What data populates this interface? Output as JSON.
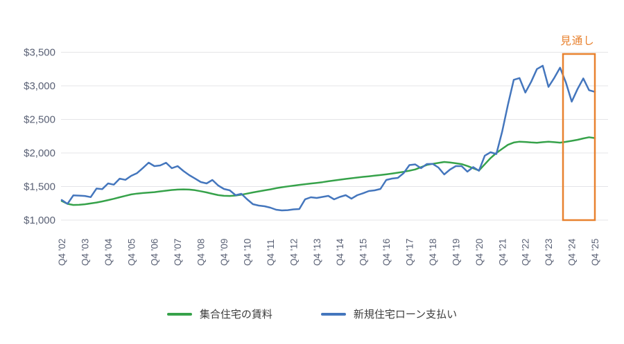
{
  "chart_data": {
    "type": "line",
    "title": "",
    "grid": "horizontal",
    "legend_position": "bottom",
    "axis_color": "#5a6175",
    "grid_color": "#e4e4e7",
    "ylim": [
      1000,
      3500
    ],
    "y_ticks": [
      {
        "value": 1000,
        "label": "$1,000"
      },
      {
        "value": 1500,
        "label": "$1,500"
      },
      {
        "value": 2000,
        "label": "$2,000"
      },
      {
        "value": 2500,
        "label": "$2,500"
      },
      {
        "value": 3000,
        "label": "$3,000"
      },
      {
        "value": 3500,
        "label": "$3,500"
      }
    ],
    "points_per_x_label": 4,
    "x_tick_labels": [
      "Q4 '02",
      "Q4 '03",
      "Q4 '04",
      "Q4 '05",
      "Q4 '06",
      "Q4 '07",
      "Q4 '08",
      "Q4 '09",
      "Q4 '10",
      "Q4 '11",
      "Q4 '12",
      "Q4 '13",
      "Q4 '14",
      "Q4 '15",
      "Q4 '16",
      "Q4 '17",
      "Q4 '18",
      "Q4 '19",
      "Q4 '20",
      "Q4 '21",
      "Q4 '22",
      "Q4 '23",
      "Q4 '24",
      "Q4 '25"
    ],
    "series": [
      {
        "name": "集合住宅の賃料",
        "color": "#36a24a",
        "values": [
          1285,
          1242,
          1226,
          1228,
          1236,
          1248,
          1262,
          1278,
          1298,
          1318,
          1340,
          1362,
          1382,
          1395,
          1403,
          1410,
          1416,
          1428,
          1438,
          1448,
          1455,
          1458,
          1455,
          1445,
          1430,
          1412,
          1392,
          1372,
          1362,
          1360,
          1366,
          1378,
          1395,
          1412,
          1428,
          1443,
          1458,
          1475,
          1490,
          1502,
          1513,
          1525,
          1535,
          1545,
          1555,
          1565,
          1578,
          1590,
          1602,
          1613,
          1624,
          1634,
          1644,
          1653,
          1662,
          1671,
          1681,
          1693,
          1706,
          1720,
          1736,
          1755,
          1788,
          1822,
          1838,
          1852,
          1866,
          1858,
          1846,
          1834,
          1806,
          1772,
          1738,
          1832,
          1924,
          2000,
          2062,
          2122,
          2156,
          2168,
          2164,
          2157,
          2152,
          2161,
          2168,
          2161,
          2154,
          2166,
          2180,
          2196,
          2216,
          2234,
          2222
        ]
      },
      {
        "name": "新規住宅ローン支払い",
        "color": "#4476bd",
        "values": [
          1300,
          1242,
          1368,
          1365,
          1360,
          1342,
          1470,
          1462,
          1546,
          1528,
          1618,
          1600,
          1660,
          1700,
          1775,
          1856,
          1804,
          1814,
          1855,
          1773,
          1804,
          1732,
          1670,
          1620,
          1567,
          1546,
          1598,
          1515,
          1464,
          1443,
          1371,
          1392,
          1309,
          1237,
          1216,
          1206,
          1186,
          1155,
          1144,
          1148,
          1160,
          1165,
          1310,
          1340,
          1330,
          1345,
          1361,
          1309,
          1345,
          1371,
          1320,
          1371,
          1400,
          1433,
          1443,
          1464,
          1598,
          1619,
          1629,
          1700,
          1820,
          1830,
          1773,
          1835,
          1838,
          1783,
          1680,
          1753,
          1804,
          1804,
          1722,
          1790,
          1735,
          1960,
          2010,
          1985,
          2320,
          2720,
          3090,
          3115,
          2900,
          3060,
          3250,
          3300,
          2985,
          3120,
          3270,
          3050,
          2765,
          2950,
          3110,
          2935,
          2910
        ]
      }
    ],
    "forecast": {
      "label": "見通し",
      "color": "#e8812e",
      "start_index": 86.5,
      "end_index": 92
    }
  }
}
